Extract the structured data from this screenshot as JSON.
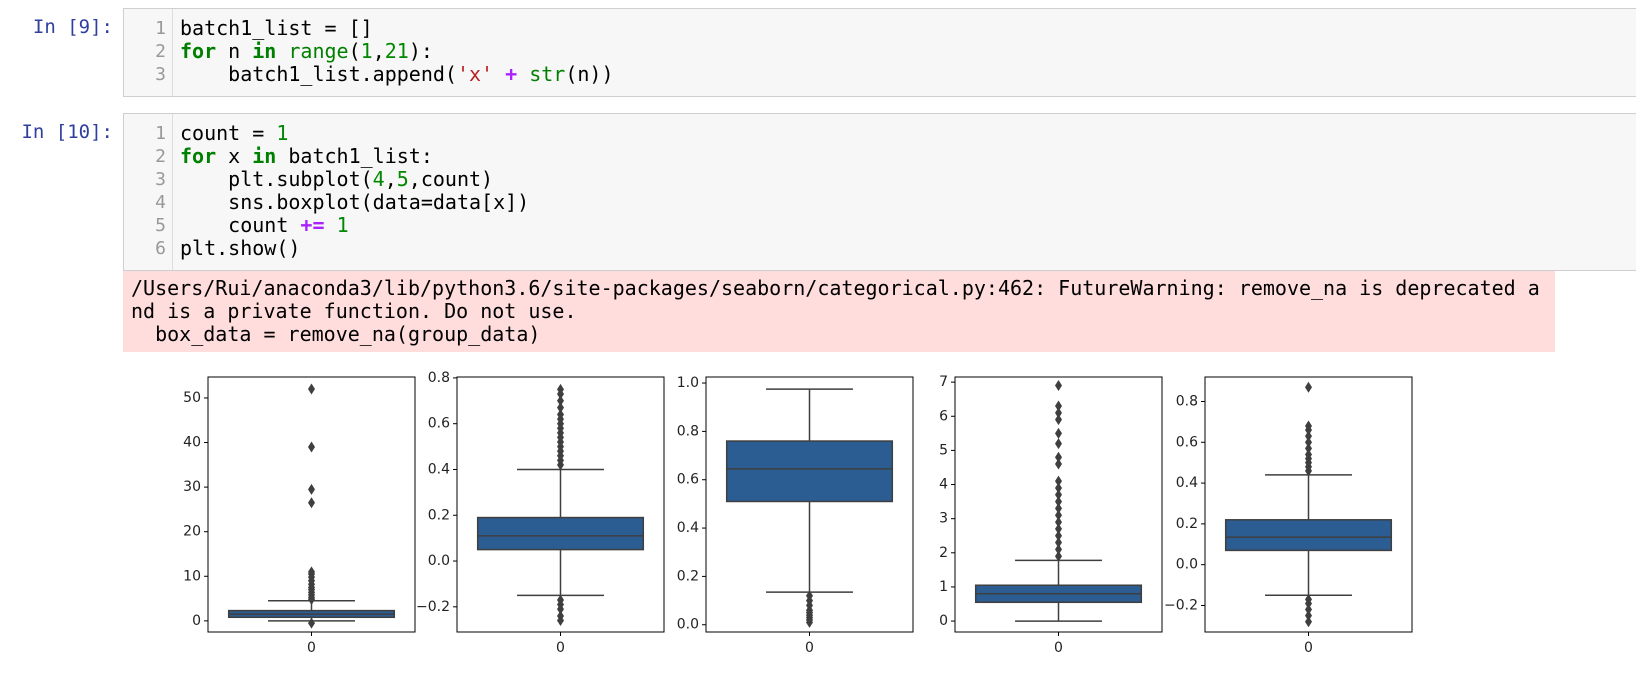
{
  "cells": [
    {
      "prompt": "In [9]:",
      "line_numbers": [
        1,
        2,
        3
      ],
      "lines": [
        [
          {
            "t": "batch1_list = []"
          }
        ],
        [
          {
            "t": "for",
            "s": "kw"
          },
          {
            "t": " n "
          },
          {
            "t": "in",
            "s": "kw"
          },
          {
            "t": " "
          },
          {
            "t": "range",
            "s": "bi"
          },
          {
            "t": "("
          },
          {
            "t": "1",
            "s": "num"
          },
          {
            "t": ","
          },
          {
            "t": "21",
            "s": "num"
          },
          {
            "t": "):"
          }
        ],
        [
          {
            "t": "    batch1_list.append("
          },
          {
            "t": "'x'",
            "s": "str"
          },
          {
            "t": " "
          },
          {
            "t": "+",
            "s": "op"
          },
          {
            "t": " "
          },
          {
            "t": "str",
            "s": "bi"
          },
          {
            "t": "(n))"
          }
        ]
      ]
    },
    {
      "prompt": "In [10]:",
      "line_numbers": [
        1,
        2,
        3,
        4,
        5,
        6
      ],
      "lines": [
        [
          {
            "t": "count = "
          },
          {
            "t": "1",
            "s": "num"
          }
        ],
        [
          {
            "t": "for",
            "s": "kw"
          },
          {
            "t": " x "
          },
          {
            "t": "in",
            "s": "kw"
          },
          {
            "t": " batch1_list:"
          }
        ],
        [
          {
            "t": "    plt.subplot("
          },
          {
            "t": "4",
            "s": "num"
          },
          {
            "t": ","
          },
          {
            "t": "5",
            "s": "num"
          },
          {
            "t": ",count)"
          }
        ],
        [
          {
            "t": "    sns.boxplot(data=data[x])"
          }
        ],
        [
          {
            "t": "    count "
          },
          {
            "t": "+=",
            "s": "op"
          },
          {
            "t": " "
          },
          {
            "t": "1",
            "s": "num"
          }
        ],
        [
          {
            "t": "plt.show()"
          }
        ]
      ]
    }
  ],
  "output": {
    "warning_lines": [
      "/Users/Rui/anaconda3/lib/python3.6/site-packages/seaborn/categorical.py:462: FutureWarning: remove_na is deprecated a",
      "nd is a private function. Do not use.",
      "  box_data = remove_na(group_data)"
    ]
  },
  "chart_data": [
    {
      "type": "box",
      "categories": [
        0
      ],
      "color": "#2b5d92",
      "ylim": [
        -2.5,
        54.7
      ],
      "yticks": [
        0,
        10,
        20,
        30,
        40,
        50
      ],
      "whisker_low": 0,
      "q1": 0.8,
      "median": 1.5,
      "q3": 2.3,
      "whisker_high": 4.5,
      "outliers": [
        52,
        39,
        29.5,
        26.5,
        11,
        10.5,
        9.8,
        9,
        8.2,
        7.5,
        7,
        6.4,
        5.8,
        5.2,
        4.8,
        -0.5
      ]
    },
    {
      "type": "box",
      "categories": [
        0
      ],
      "color": "#2b5d92",
      "ylim": [
        -0.31,
        0.804
      ],
      "yticks": [
        {
          "value": -0.2,
          "label": "−0.2"
        },
        {
          "value": 0,
          "label": "0.0"
        },
        0.2,
        0.4,
        0.6,
        0.8
      ],
      "whisker_low": -0.15,
      "q1": 0.05,
      "median": 0.11,
      "q3": 0.19,
      "whisker_high": 0.4,
      "outliers": [
        0.75,
        0.73,
        0.7,
        0.67,
        0.64,
        0.62,
        0.6,
        0.58,
        0.56,
        0.54,
        0.52,
        0.5,
        0.48,
        0.46,
        0.44,
        0.42,
        -0.17,
        -0.19,
        -0.21,
        -0.24,
        -0.26
      ]
    },
    {
      "type": "box",
      "categories": [
        0
      ],
      "color": "#2b5d92",
      "ylim": [
        -0.03,
        1.025
      ],
      "yticks": [
        {
          "value": 0,
          "label": "0.0"
        },
        0.2,
        0.4,
        0.6,
        0.8,
        {
          "value": 1,
          "label": "1.0"
        }
      ],
      "whisker_low": 0.135,
      "q1": 0.51,
      "median": 0.645,
      "q3": 0.76,
      "whisker_high": 0.975,
      "outliers": [
        0.12,
        0.1,
        0.08,
        0.06,
        0.05,
        0.04,
        0.03,
        0.02,
        0.01
      ]
    },
    {
      "type": "box",
      "categories": [
        0
      ],
      "color": "#2b5d92",
      "ylim": [
        -0.32,
        7.15
      ],
      "yticks": [
        0,
        1,
        2,
        3,
        4,
        5,
        6,
        7
      ],
      "whisker_low": 0,
      "q1": 0.55,
      "median": 0.8,
      "q3": 1.05,
      "whisker_high": 1.78,
      "outliers": [
        6.9,
        6.3,
        6.1,
        5.9,
        5.5,
        5.2,
        4.8,
        4.6,
        4.1,
        3.9,
        3.7,
        3.5,
        3.3,
        3.1,
        2.9,
        2.7,
        2.5,
        2.3,
        2.1,
        1.9
      ]
    },
    {
      "type": "box",
      "categories": [
        0
      ],
      "color": "#2b5d92",
      "ylim": [
        -0.33,
        0.92
      ],
      "yticks": [
        {
          "value": -0.2,
          "label": "−0.2"
        },
        {
          "value": 0,
          "label": "0.0"
        },
        0.2,
        0.4,
        0.6,
        0.8
      ],
      "whisker_low": -0.15,
      "q1": 0.07,
      "median": 0.135,
      "q3": 0.22,
      "whisker_high": 0.44,
      "outliers": [
        0.87,
        0.68,
        0.66,
        0.63,
        0.6,
        0.57,
        0.54,
        0.52,
        0.5,
        0.48,
        0.46,
        -0.17,
        -0.19,
        -0.22,
        -0.25,
        -0.28
      ]
    }
  ]
}
